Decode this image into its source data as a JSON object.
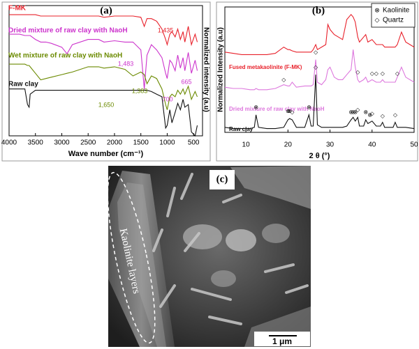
{
  "chart_data": [
    {
      "type": "line",
      "panel_label": "(a)",
      "x_label": "Wave number (cm⁻¹)",
      "y_label": "Normalized intensity (a.u)",
      "xlim": [
        4000,
        330
      ],
      "ylim": [
        0,
        100
      ],
      "xticks": [
        4000,
        3500,
        3000,
        2500,
        2000,
        1500,
        1000,
        500
      ],
      "x": [
        4000,
        3800,
        3700,
        3650,
        3620,
        3600,
        3500,
        3400,
        3300,
        3200,
        3000,
        2900,
        2800,
        2500,
        2300,
        2200,
        2000,
        1800,
        1650,
        1500,
        1435,
        1383,
        1300,
        1200,
        1100,
        1030,
        1000,
        950,
        910,
        850,
        800,
        750,
        700,
        665,
        600,
        540,
        470,
        430
      ],
      "series": [
        {
          "name": "F-MK",
          "color": "#e8202a",
          "values": [
            93,
            93,
            93,
            93,
            93,
            93,
            93,
            92,
            92,
            92,
            92,
            92,
            92,
            92,
            92,
            91,
            92,
            92,
            92,
            91,
            84,
            90,
            90,
            88,
            82,
            74,
            70,
            78,
            80,
            76,
            82,
            74,
            80,
            72,
            84,
            70,
            78,
            72
          ]
        },
        {
          "name": "Dried mixture of raw clay with NaoH",
          "color": "#cc33cc",
          "values": [
            78,
            78,
            77,
            77,
            77,
            77,
            74,
            72,
            72,
            71,
            68,
            63,
            70,
            74,
            74,
            72,
            73,
            72,
            72,
            66,
            36,
            62,
            70,
            66,
            60,
            48,
            44,
            58,
            56,
            50,
            62,
            52,
            60,
            50,
            64,
            48,
            58,
            50
          ]
        },
        {
          "name": "Wet mixture of raw clay with NaoH",
          "color": "#6b8a00",
          "values": [
            55,
            55,
            55,
            54,
            54,
            53,
            48,
            43,
            44,
            45,
            47,
            48,
            49,
            53,
            53,
            52,
            53,
            51,
            46,
            49,
            47,
            40,
            46,
            44,
            36,
            24,
            20,
            30,
            32,
            30,
            35,
            32,
            36,
            32,
            38,
            28,
            34,
            30
          ]
        },
        {
          "name": "Raw clay",
          "color": "#111111",
          "values": [
            36,
            36,
            36,
            24,
            22,
            32,
            35,
            35,
            35,
            35,
            35,
            35,
            35,
            35,
            35,
            35,
            35,
            35,
            35,
            35,
            35,
            35,
            34,
            32,
            30,
            6,
            8,
            20,
            10,
            18,
            25,
            20,
            28,
            22,
            24,
            3,
            0,
            8
          ]
        }
      ],
      "annotations": [
        {
          "text": "1,435",
          "color": "#e8202a"
        },
        {
          "text": "1,483",
          "color": "#cc33cc"
        },
        {
          "text": "1,650",
          "color": "#6b8a00"
        },
        {
          "text": "1,383",
          "color": "#6b8a00"
        },
        {
          "text": "700",
          "color": "#cc33cc"
        },
        {
          "text": "665",
          "color": "#cc33cc"
        }
      ]
    },
    {
      "type": "line",
      "panel_label": "(b)",
      "x_label": "2 θ (°)",
      "y_label": "Normalized Intensity (a.u)",
      "xlim": [
        5,
        50
      ],
      "ylim": [
        0,
        100
      ],
      "xticks": [
        10,
        20,
        30,
        40,
        50
      ],
      "legend": "upper right",
      "x": [
        5,
        7,
        9,
        11,
        12,
        12.4,
        13,
        15,
        17,
        19,
        20,
        20.4,
        21,
        22,
        24,
        25,
        25.5,
        26,
        26.6,
        27,
        28,
        29,
        29.5,
        30,
        31,
        32,
        33,
        34,
        35,
        35.5,
        36,
        36.6,
        37,
        38,
        38.5,
        39,
        40,
        41,
        42,
        42.5,
        43,
        45,
        45.5,
        46,
        47,
        48,
        50
      ],
      "series": [
        {
          "name": "Fused metakaolinite (F-MK)",
          "color": "#e8202a",
          "values": [
            64,
            63,
            62,
            62,
            62,
            62,
            62,
            62,
            63,
            68,
            66,
            66,
            65,
            64,
            64,
            64,
            64,
            66,
            70,
            66,
            68,
            70,
            86,
            82,
            78,
            76,
            74,
            90,
            94,
            92,
            88,
            76,
            72,
            76,
            78,
            72,
            74,
            70,
            70,
            70,
            68,
            68,
            68,
            70,
            80,
            72,
            68
          ]
        },
        {
          "name": "Dried mixture of raw clay with NaoH",
          "color": "#dd77dd",
          "values": [
            36,
            35,
            35,
            34,
            34,
            35,
            34,
            34,
            35,
            38,
            37,
            37,
            40,
            36,
            37,
            37,
            37,
            38,
            58,
            40,
            38,
            42,
            50,
            52,
            44,
            42,
            42,
            46,
            50,
            66,
            52,
            42,
            40,
            42,
            44,
            40,
            42,
            40,
            40,
            42,
            40,
            40,
            40,
            44,
            52,
            44,
            40
          ]
        },
        {
          "name": "Raw clay",
          "color": "#111111",
          "values": [
            4,
            3,
            3,
            3,
            4,
            14,
            4,
            3,
            3,
            4,
            10,
            11,
            10,
            4,
            4,
            14,
            5,
            5,
            46,
            6,
            4,
            4,
            4,
            4,
            4,
            4,
            4,
            5,
            10,
            12,
            9,
            12,
            5,
            5,
            10,
            7,
            9,
            5,
            5,
            8,
            4,
            4,
            8,
            4,
            4,
            4,
            3
          ]
        }
      ],
      "markers": [
        {
          "name": "Kaolinite",
          "symbol": "⊗",
          "x": [
            12.4,
            20,
            20.4,
            25,
            35,
            35.5,
            36,
            38.5,
            39.5
          ],
          "y": [
            20,
            17,
            17,
            20,
            16,
            16,
            16,
            16,
            14
          ]
        },
        {
          "name": "Quartz",
          "symbol": "◇",
          "x": [
            21,
            26.6,
            36.6,
            40,
            42.5,
            45.5,
            19,
            26.6,
            36.6,
            40,
            41,
            42.5,
            46
          ],
          "y": [
            16,
            52,
            18,
            15,
            13,
            14,
            42,
            64,
            48,
            47,
            47,
            47,
            47
          ]
        }
      ]
    }
  ],
  "image": {
    "label": "(c)",
    "annotation": "Kaolinite layers",
    "scale_bar": "1 μm"
  }
}
